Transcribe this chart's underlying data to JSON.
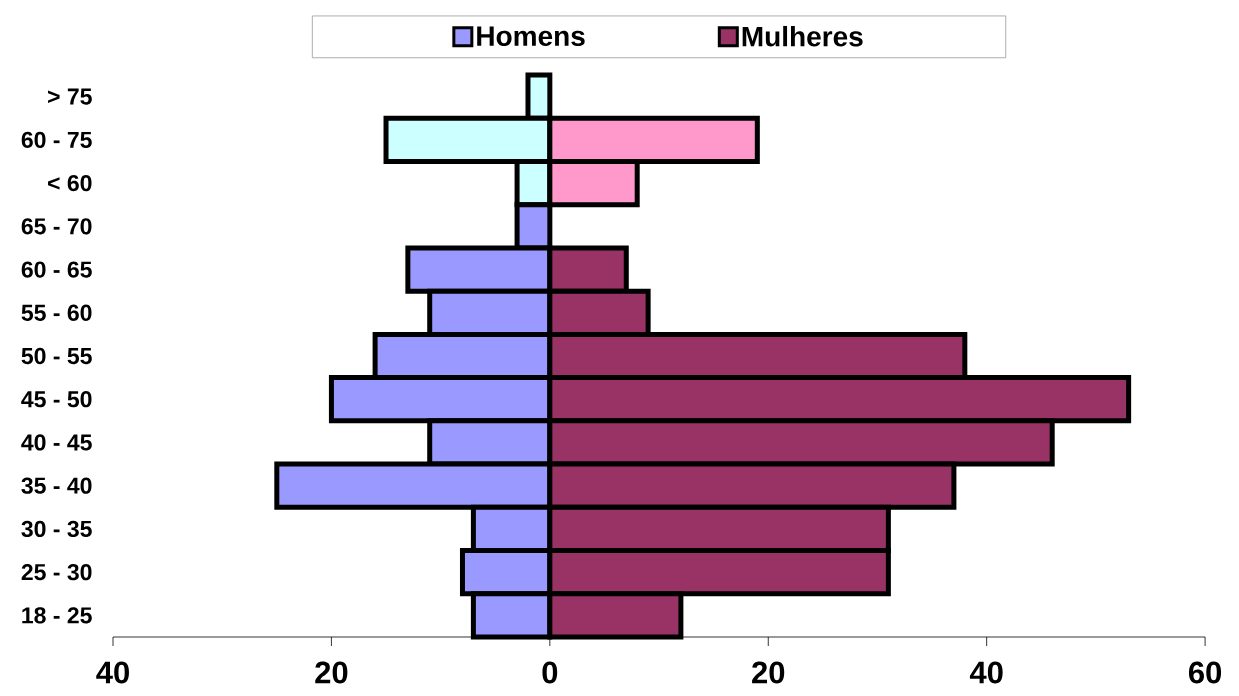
{
  "chart_data": {
    "type": "bar",
    "orientation": "horizontal",
    "categories": [
      "> 75",
      "60 - 75",
      "< 60",
      "65 - 70",
      "60 - 65",
      "55 - 60",
      "50 - 55",
      "45 - 50",
      "40 - 45",
      "35 - 40",
      "30 - 35",
      "25 - 30",
      "18 - 25"
    ],
    "series": [
      {
        "name": "Homens",
        "color": "#9999ff",
        "colors": [
          "#ccffff",
          "#ccffff",
          "#ccffff",
          "#9999ff",
          "#9999ff",
          "#9999ff",
          "#9999ff",
          "#9999ff",
          "#9999ff",
          "#9999ff",
          "#9999ff",
          "#9999ff",
          "#9999ff"
        ],
        "values": [
          -2,
          -15,
          -3,
          -3,
          -13,
          -11,
          -16,
          -20,
          -11,
          -25,
          -7,
          -8,
          -7
        ]
      },
      {
        "name": "Mulheres",
        "color": "#993366",
        "colors": [
          "#ff99cc",
          "#ff99cc",
          "#ff99cc",
          "#993366",
          "#993366",
          "#993366",
          "#993366",
          "#993366",
          "#993366",
          "#993366",
          "#993366",
          "#993366",
          "#993366"
        ],
        "values": [
          null,
          19,
          8,
          null,
          7,
          9,
          38,
          53,
          46,
          37,
          31,
          31,
          12
        ]
      }
    ],
    "xlim": [
      -40,
      60
    ],
    "xticks": [
      {
        "value": -40,
        "label": "40"
      },
      {
        "value": -20,
        "label": "20"
      },
      0,
      20,
      40,
      60
    ],
    "legend": "top",
    "grid": false,
    "stacked": true
  }
}
